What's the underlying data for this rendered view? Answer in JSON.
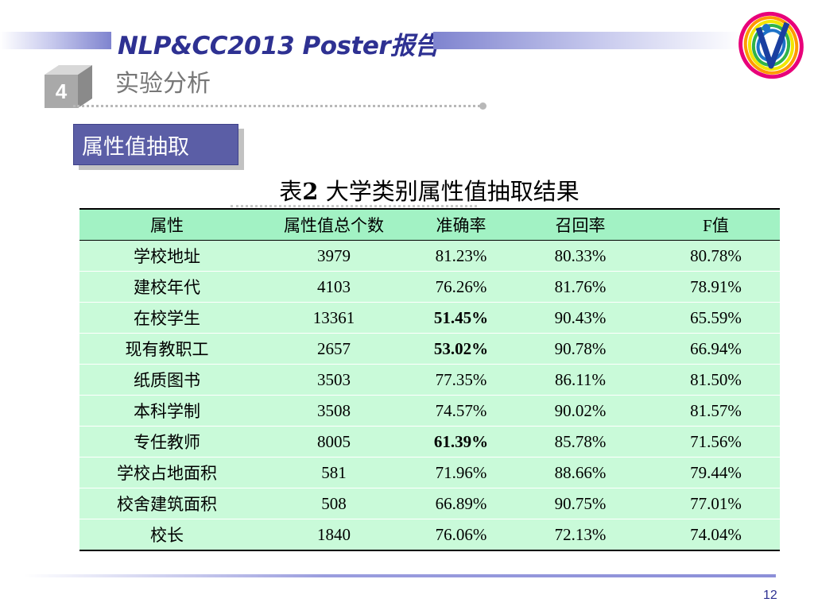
{
  "header": {
    "title": "NLP&CC2013 Poster报告"
  },
  "section": {
    "number": "4",
    "title": "实验分析"
  },
  "subsection": {
    "label": "属性值抽取"
  },
  "table": {
    "caption_prefix": "表",
    "caption_number": "2",
    "caption_text": " 大学类别属性值抽取结果",
    "columns": [
      "属性",
      "属性值总个数",
      "准确率",
      "召回率",
      "F值"
    ],
    "rows": [
      [
        "学校地址",
        "3979",
        "81.23%",
        "80.33%",
        "80.78%"
      ],
      [
        "建校年代",
        "4103",
        "76.26%",
        "81.76%",
        "78.91%"
      ],
      [
        "在校学生",
        "13361",
        "51.45%",
        "90.43%",
        "65.59%"
      ],
      [
        "现有教职工",
        "2657",
        "53.02%",
        "90.78%",
        "66.94%"
      ],
      [
        "纸质图书",
        "3503",
        "77.35%",
        "86.11%",
        "81.50%"
      ],
      [
        "本科学制",
        "3508",
        "74.57%",
        "90.02%",
        "81.57%"
      ],
      [
        "专任教师",
        "8005",
        "61.39%",
        "85.78%",
        "71.56%"
      ],
      [
        "学校占地面积",
        "581",
        "71.96%",
        "88.66%",
        "79.44%"
      ],
      [
        "校舍建筑面积",
        "508",
        "66.89%",
        "90.75%",
        "77.01%"
      ],
      [
        "校长",
        "1840",
        "76.06%",
        "72.13%",
        "74.04%"
      ]
    ]
  },
  "footer": {
    "page_number": "12"
  },
  "colors": {
    "header_blue": "#2e3192",
    "table_header_bg": "#a2f2c4",
    "table_row_bg": "#c9fad9",
    "subsection_bg": "#5b5ea6"
  }
}
